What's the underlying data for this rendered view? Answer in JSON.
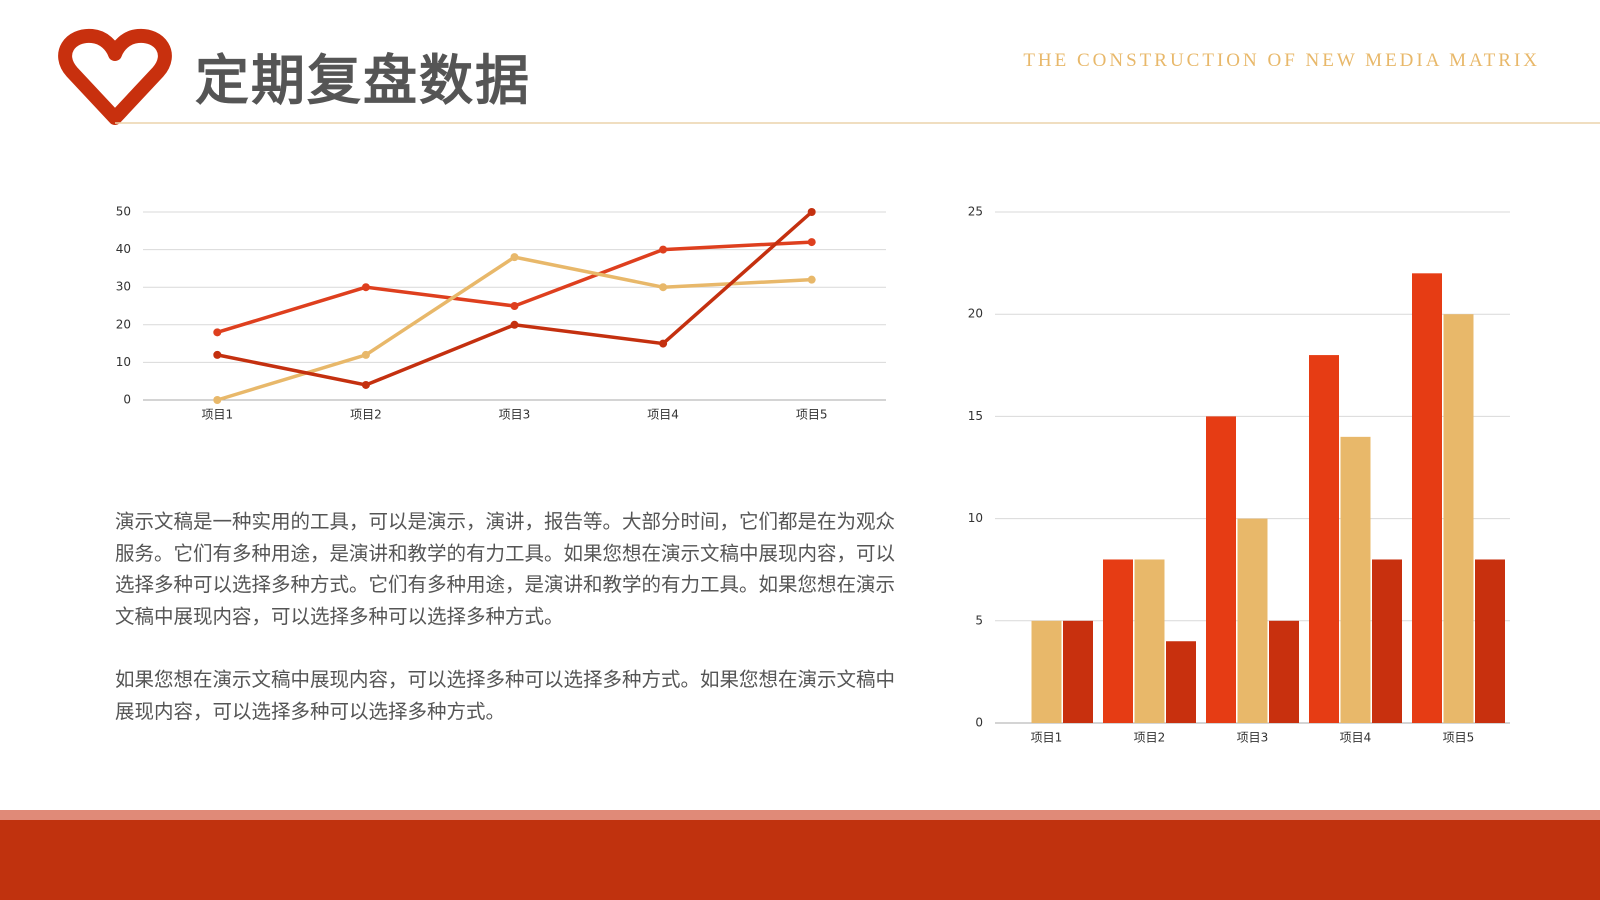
{
  "header": {
    "title": "定期复盘数据",
    "subtitle": "THE CONSTRUCTION OF NEW MEDIA MATRIX"
  },
  "paragraphs": [
    "演示文稿是一种实用的工具，可以是演示，演讲，报告等。大部分时间，它们都是在为观众服务。它们有多种用途，是演讲和教学的有力工具。如果您想在演示文稿中展现内容，可以选择多种可以选择多种方式。它们有多种用途，是演讲和教学的有力工具。如果您想在演示文稿中展现内容，可以选择多种可以选择多种方式。",
    "如果您想在演示文稿中展现内容，可以选择多种可以选择多种方式。如果您想在演示文稿中展现内容，可以选择多种可以选择多种方式。"
  ],
  "chart_data": [
    {
      "type": "line",
      "categories": [
        "项目1",
        "项目2",
        "项目3",
        "项目4",
        "项目5"
      ],
      "series": [
        {
          "color": "#de3f1e",
          "values": [
            18,
            30,
            25,
            40,
            42
          ]
        },
        {
          "color": "#e8b86a",
          "values": [
            0,
            12,
            38,
            30,
            32
          ]
        },
        {
          "color": "#c4300f",
          "values": [
            12,
            4,
            20,
            15,
            50
          ]
        }
      ],
      "ylim": [
        0,
        50
      ],
      "yticks": [
        0,
        10,
        20,
        30,
        40,
        50
      ],
      "grid": true
    },
    {
      "type": "bar",
      "categories": [
        "项目1",
        "项目2",
        "项目3",
        "项目4",
        "项目5"
      ],
      "series": [
        {
          "color": "#e63c14",
          "values": [
            0,
            8,
            15,
            18,
            22
          ]
        },
        {
          "color": "#e8b86a",
          "values": [
            5,
            8,
            10,
            14,
            20
          ]
        },
        {
          "color": "#c8300e",
          "values": [
            5,
            4,
            5,
            8,
            8
          ]
        }
      ],
      "ylim": [
        0,
        25
      ],
      "yticks": [
        0,
        5,
        10,
        15,
        20,
        25
      ],
      "grid": true
    }
  ]
}
